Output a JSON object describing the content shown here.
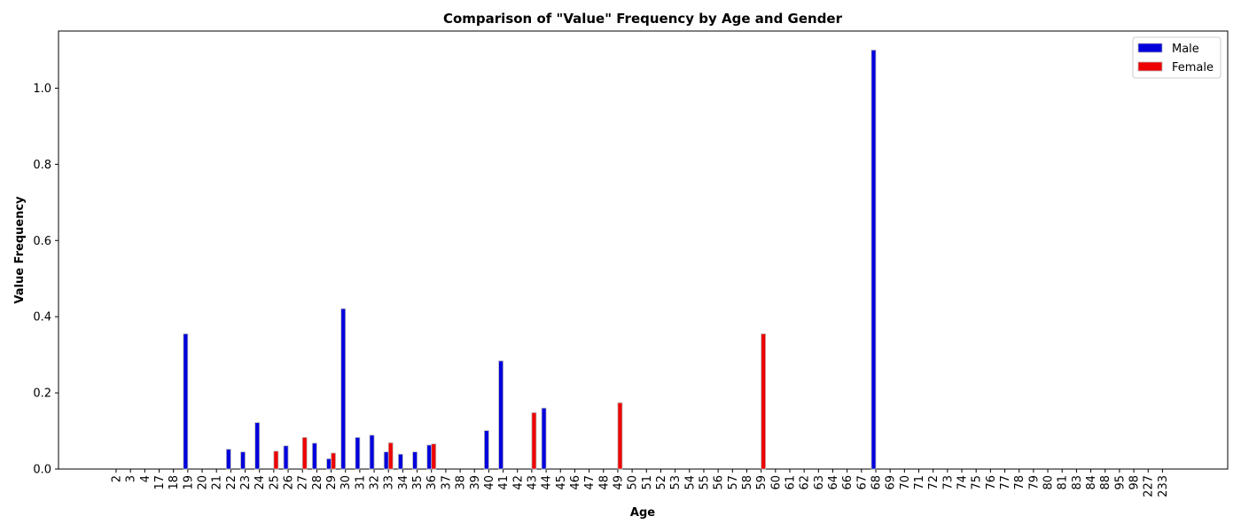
{
  "chart_data": {
    "type": "bar",
    "title": "Comparison of \"Value\" Frequency by Age and Gender",
    "xlabel": "Age",
    "ylabel": "Value Frequency",
    "ylim": [
      0,
      1.15
    ],
    "yticks": [
      "0.0",
      "0.2",
      "0.4",
      "0.6",
      "0.8",
      "1.0"
    ],
    "grid": false,
    "legend_position": "top-right",
    "categories": [
      "2",
      "3",
      "4",
      "17",
      "18",
      "19",
      "20",
      "21",
      "22",
      "23",
      "24",
      "25",
      "26",
      "27",
      "28",
      "29",
      "30",
      "31",
      "32",
      "33",
      "34",
      "35",
      "36",
      "37",
      "38",
      "39",
      "40",
      "41",
      "42",
      "43",
      "44",
      "45",
      "46",
      "47",
      "48",
      "49",
      "50",
      "51",
      "52",
      "53",
      "54",
      "55",
      "56",
      "57",
      "58",
      "59",
      "60",
      "61",
      "62",
      "63",
      "64",
      "66",
      "67",
      "68",
      "69",
      "70",
      "71",
      "72",
      "73",
      "74",
      "75",
      "76",
      "77",
      "78",
      "79",
      "80",
      "81",
      "83",
      "84",
      "88",
      "95",
      "98",
      "227",
      "233"
    ],
    "series": [
      {
        "name": "Male",
        "color": "#0000dd",
        "values": [
          0,
          0,
          0,
          0,
          0,
          0.355,
          0,
          0,
          0.052,
          0.045,
          0.122,
          0,
          0.061,
          0,
          0.068,
          0.027,
          0.421,
          0.083,
          0.089,
          0.045,
          0.039,
          0.045,
          0.063,
          0,
          0,
          0,
          0.101,
          0.284,
          0,
          0,
          0.16,
          0,
          0,
          0,
          0,
          0,
          0,
          0,
          0,
          0,
          0,
          0,
          0,
          0,
          0,
          0,
          0,
          0,
          0,
          0,
          0,
          0,
          0,
          1.1,
          0,
          0,
          0,
          0,
          0,
          0,
          0,
          0,
          0,
          0,
          0,
          0,
          0,
          0,
          0,
          0,
          0,
          0,
          0,
          0
        ]
      },
      {
        "name": "Female",
        "color": "#ee0000",
        "values": [
          0,
          0,
          0,
          0,
          0,
          0,
          0,
          0,
          0,
          0,
          0,
          0.047,
          0,
          0.083,
          0,
          0.042,
          0,
          0,
          0,
          0.069,
          0,
          0,
          0.066,
          0,
          0,
          0,
          0,
          0,
          0,
          0.148,
          0,
          0,
          0,
          0,
          0,
          0.174,
          0,
          0,
          0,
          0,
          0,
          0,
          0,
          0,
          0,
          0.355,
          0,
          0,
          0,
          0,
          0,
          0,
          0,
          0,
          0,
          0,
          0,
          0,
          0,
          0,
          0,
          0,
          0,
          0,
          0,
          0,
          0,
          0,
          0,
          0,
          0,
          0,
          0,
          0
        ]
      }
    ]
  }
}
